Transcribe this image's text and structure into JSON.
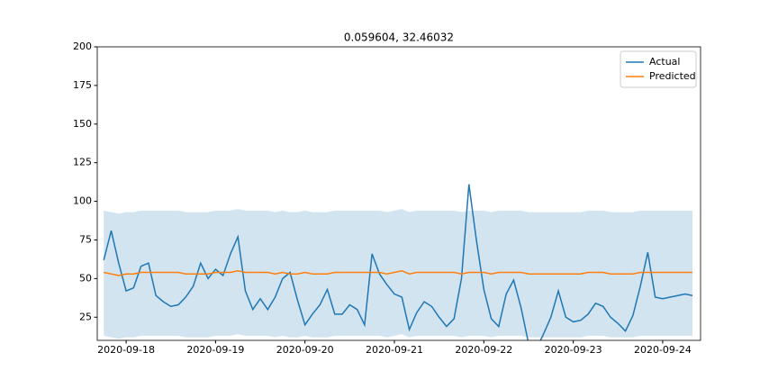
{
  "chart_data": {
    "type": "line",
    "title": "0.059604, 32.46032",
    "x": [
      "2020-09-17 18:00",
      "2020-09-17 20:00",
      "2020-09-17 22:00",
      "2020-09-18 00:00",
      "2020-09-18 02:00",
      "2020-09-18 04:00",
      "2020-09-18 06:00",
      "2020-09-18 08:00",
      "2020-09-18 10:00",
      "2020-09-18 12:00",
      "2020-09-18 14:00",
      "2020-09-18 16:00",
      "2020-09-18 18:00",
      "2020-09-18 20:00",
      "2020-09-18 22:00",
      "2020-09-19 00:00",
      "2020-09-19 02:00",
      "2020-09-19 04:00",
      "2020-09-19 06:00",
      "2020-09-19 08:00",
      "2020-09-19 10:00",
      "2020-09-19 12:00",
      "2020-09-19 14:00",
      "2020-09-19 16:00",
      "2020-09-19 18:00",
      "2020-09-19 20:00",
      "2020-09-19 22:00",
      "2020-09-20 00:00",
      "2020-09-20 02:00",
      "2020-09-20 04:00",
      "2020-09-20 06:00",
      "2020-09-20 08:00",
      "2020-09-20 10:00",
      "2020-09-20 12:00",
      "2020-09-20 14:00",
      "2020-09-20 16:00",
      "2020-09-20 18:00",
      "2020-09-20 20:00",
      "2020-09-20 22:00",
      "2020-09-21 00:00",
      "2020-09-21 02:00",
      "2020-09-21 04:00",
      "2020-09-21 06:00",
      "2020-09-21 08:00",
      "2020-09-21 10:00",
      "2020-09-21 12:00",
      "2020-09-21 14:00",
      "2020-09-21 16:00",
      "2020-09-21 18:00",
      "2020-09-21 20:00",
      "2020-09-21 22:00",
      "2020-09-22 00:00",
      "2020-09-22 02:00",
      "2020-09-22 04:00",
      "2020-09-22 06:00",
      "2020-09-22 08:00",
      "2020-09-22 10:00",
      "2020-09-22 12:00",
      "2020-09-22 14:00",
      "2020-09-22 16:00",
      "2020-09-22 18:00",
      "2020-09-22 20:00",
      "2020-09-22 22:00",
      "2020-09-23 00:00",
      "2020-09-23 02:00",
      "2020-09-23 04:00",
      "2020-09-23 06:00",
      "2020-09-23 08:00",
      "2020-09-23 10:00",
      "2020-09-23 12:00",
      "2020-09-23 14:00",
      "2020-09-23 16:00",
      "2020-09-23 18:00",
      "2020-09-23 20:00",
      "2020-09-23 22:00",
      "2020-09-24 00:00",
      "2020-09-24 02:00",
      "2020-09-24 04:00",
      "2020-09-24 06:00",
      "2020-09-24 08:00"
    ],
    "series": [
      {
        "name": "Actual",
        "color": "#1f77b4",
        "values": [
          62,
          81,
          60,
          42,
          44,
          58,
          60,
          39,
          35,
          32,
          33,
          38,
          45,
          60,
          50,
          56,
          52,
          66,
          77,
          42,
          30,
          37,
          30,
          38,
          50,
          54,
          36,
          20,
          27,
          33,
          43,
          27,
          27,
          33,
          30,
          20,
          66,
          53,
          46,
          40,
          38,
          17,
          28,
          35,
          32,
          25,
          19,
          24,
          50,
          111,
          75,
          43,
          24,
          19,
          40,
          49,
          31,
          8,
          4,
          14,
          25,
          42,
          25,
          22,
          23,
          27,
          34,
          32,
          25,
          21,
          16,
          26,
          45,
          67,
          38,
          37,
          38,
          39,
          40,
          39
        ]
      },
      {
        "name": "Predicted",
        "color": "#ff7f0e",
        "values": [
          54,
          53,
          52,
          53,
          53,
          54,
          54,
          54,
          54,
          54,
          54,
          53,
          53,
          53,
          53,
          54,
          54,
          54,
          55,
          54,
          54,
          54,
          54,
          53,
          54,
          53,
          53,
          54,
          53,
          53,
          53,
          54,
          54,
          54,
          54,
          54,
          54,
          54,
          53,
          54,
          55,
          53,
          54,
          54,
          54,
          54,
          54,
          54,
          53,
          54,
          54,
          54,
          53,
          54,
          54,
          54,
          54,
          53,
          53,
          53,
          53,
          53,
          53,
          53,
          53,
          54,
          54,
          54,
          53,
          53,
          53,
          53,
          54,
          54,
          54,
          54,
          54,
          54,
          54,
          54
        ]
      }
    ],
    "band": {
      "color": "#1f77b4",
      "lower": [
        13,
        12,
        11,
        12,
        12,
        13,
        13,
        13,
        13,
        13,
        13,
        12,
        12,
        12,
        12,
        13,
        13,
        13,
        14,
        13,
        13,
        13,
        13,
        12,
        13,
        12,
        12,
        13,
        12,
        12,
        12,
        13,
        13,
        13,
        13,
        13,
        13,
        13,
        12,
        13,
        14,
        12,
        13,
        13,
        13,
        13,
        13,
        13,
        12,
        13,
        13,
        13,
        12,
        13,
        13,
        13,
        13,
        12,
        12,
        12,
        12,
        12,
        12,
        12,
        12,
        13,
        13,
        13,
        12,
        12,
        12,
        12,
        13,
        13,
        13,
        13,
        13,
        13,
        13,
        13
      ],
      "upper": [
        94,
        93,
        92,
        93,
        93,
        94,
        94,
        94,
        94,
        94,
        94,
        93,
        93,
        93,
        93,
        94,
        94,
        94,
        95,
        94,
        94,
        94,
        94,
        93,
        94,
        93,
        93,
        94,
        93,
        93,
        93,
        94,
        94,
        94,
        94,
        94,
        94,
        94,
        93,
        94,
        95,
        93,
        94,
        94,
        94,
        94,
        94,
        94,
        93,
        94,
        94,
        94,
        93,
        94,
        94,
        94,
        94,
        93,
        93,
        93,
        93,
        93,
        93,
        93,
        93,
        94,
        94,
        94,
        93,
        93,
        93,
        93,
        94,
        94,
        94,
        94,
        94,
        94,
        94,
        94
      ]
    },
    "xlim": [
      "2020-09-17 16:15",
      "2020-09-24 10:10"
    ],
    "xticks": [
      "2020-09-18",
      "2020-09-19",
      "2020-09-20",
      "2020-09-21",
      "2020-09-22",
      "2020-09-23",
      "2020-09-24"
    ],
    "ylim": [
      10,
      200
    ],
    "yticks": [
      25,
      50,
      75,
      100,
      125,
      150,
      175,
      200
    ],
    "legend": "upper right"
  }
}
